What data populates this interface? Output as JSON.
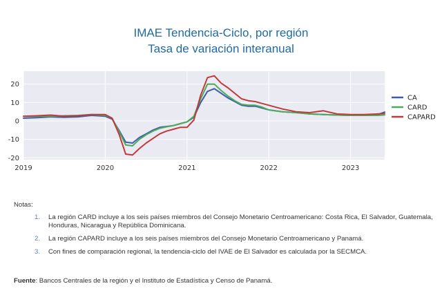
{
  "chart_data": {
    "type": "line",
    "title": "IMAE Tendencia-Ciclo, por región",
    "subtitle": "Tasa de variación interanual",
    "x_ticks": [
      "2019",
      "2020",
      "2021",
      "2022",
      "2023"
    ],
    "y_ticks": [
      20,
      10,
      0,
      -10,
      -20
    ],
    "xlim": [
      "2019-01",
      "2023-06"
    ],
    "ylim": [
      -21,
      27
    ],
    "grid": true,
    "legend_position": "right",
    "x": [
      "2019-01",
      "2019-03",
      "2019-05",
      "2019-07",
      "2019-09",
      "2019-11",
      "2020-01",
      "2020-02",
      "2020-03",
      "2020-04",
      "2020-05",
      "2020-06",
      "2020-07",
      "2020-08",
      "2020-09",
      "2020-10",
      "2020-11",
      "2020-12",
      "2021-01",
      "2021-02",
      "2021-03",
      "2021-04",
      "2021-05",
      "2021-06",
      "2021-07",
      "2021-08",
      "2021-09",
      "2021-10",
      "2021-11",
      "2021-12",
      "2022-01",
      "2022-03",
      "2022-05",
      "2022-07",
      "2022-09",
      "2022-11",
      "2023-01",
      "2023-03",
      "2023-05",
      "2023-06"
    ],
    "series": [
      {
        "name": "CA",
        "color": "#3b5ea8",
        "values": [
          1.5,
          1.8,
          2.2,
          2.0,
          2.2,
          3.0,
          2.5,
          1.0,
          -5.0,
          -11.5,
          -12.0,
          -9.0,
          -7.0,
          -5.0,
          -3.5,
          -3.0,
          -2.5,
          -1.5,
          -0.5,
          2.0,
          10.0,
          16.0,
          17.5,
          15.0,
          12.5,
          10.5,
          8.5,
          8.0,
          8.0,
          7.0,
          6.0,
          5.0,
          4.5,
          3.8,
          3.5,
          3.2,
          3.0,
          3.2,
          3.5,
          4.8
        ]
      },
      {
        "name": "CARD",
        "color": "#4daa5b",
        "values": [
          2.5,
          2.5,
          2.5,
          2.8,
          3.0,
          3.5,
          3.0,
          1.5,
          -5.5,
          -13.0,
          -13.5,
          -10.0,
          -7.5,
          -5.5,
          -4.0,
          -3.2,
          -2.5,
          -1.5,
          -0.5,
          2.5,
          12.0,
          20.0,
          20.0,
          16.5,
          13.5,
          11.0,
          9.0,
          8.5,
          8.5,
          7.5,
          6.0,
          5.0,
          4.5,
          3.8,
          3.5,
          3.2,
          3.0,
          3.0,
          3.0,
          3.3
        ]
      },
      {
        "name": "CAPARD",
        "color": "#c0393b",
        "values": [
          2.5,
          2.8,
          3.2,
          2.5,
          2.8,
          3.5,
          3.5,
          1.5,
          -7.0,
          -18.0,
          -18.5,
          -15.0,
          -12.0,
          -9.5,
          -7.0,
          -5.5,
          -4.5,
          -3.5,
          -3.5,
          0.5,
          14.0,
          23.5,
          24.5,
          20.5,
          18.0,
          15.0,
          12.0,
          11.0,
          10.5,
          9.5,
          8.5,
          6.5,
          5.0,
          4.5,
          5.5,
          3.8,
          3.5,
          3.5,
          3.8,
          4.0
        ]
      }
    ]
  },
  "notes": {
    "heading": "Notas:",
    "items": [
      {
        "num": "1.",
        "text": "La región CARD incluye a los seis países miembros del Consejo Monetario Centroamericano: Costa Rica, El Salvador, Guatemala, Honduras, Nicaragua y República Dominicana."
      },
      {
        "num": "2.",
        "text": "La región CAPARD incluye a los seis países miembros del Consejo Monetario Centroamericano y Panamá."
      },
      {
        "num": "3.",
        "text": "Con fines de comparación regional, la tendencia-ciclo del IVAE de El Salvador es calculada por la SECMCA."
      }
    ]
  },
  "source": {
    "label": "Fuente",
    "text": ": Bancos Centrales de la región y el Instituto de Estadística y Censo de Panamá."
  }
}
